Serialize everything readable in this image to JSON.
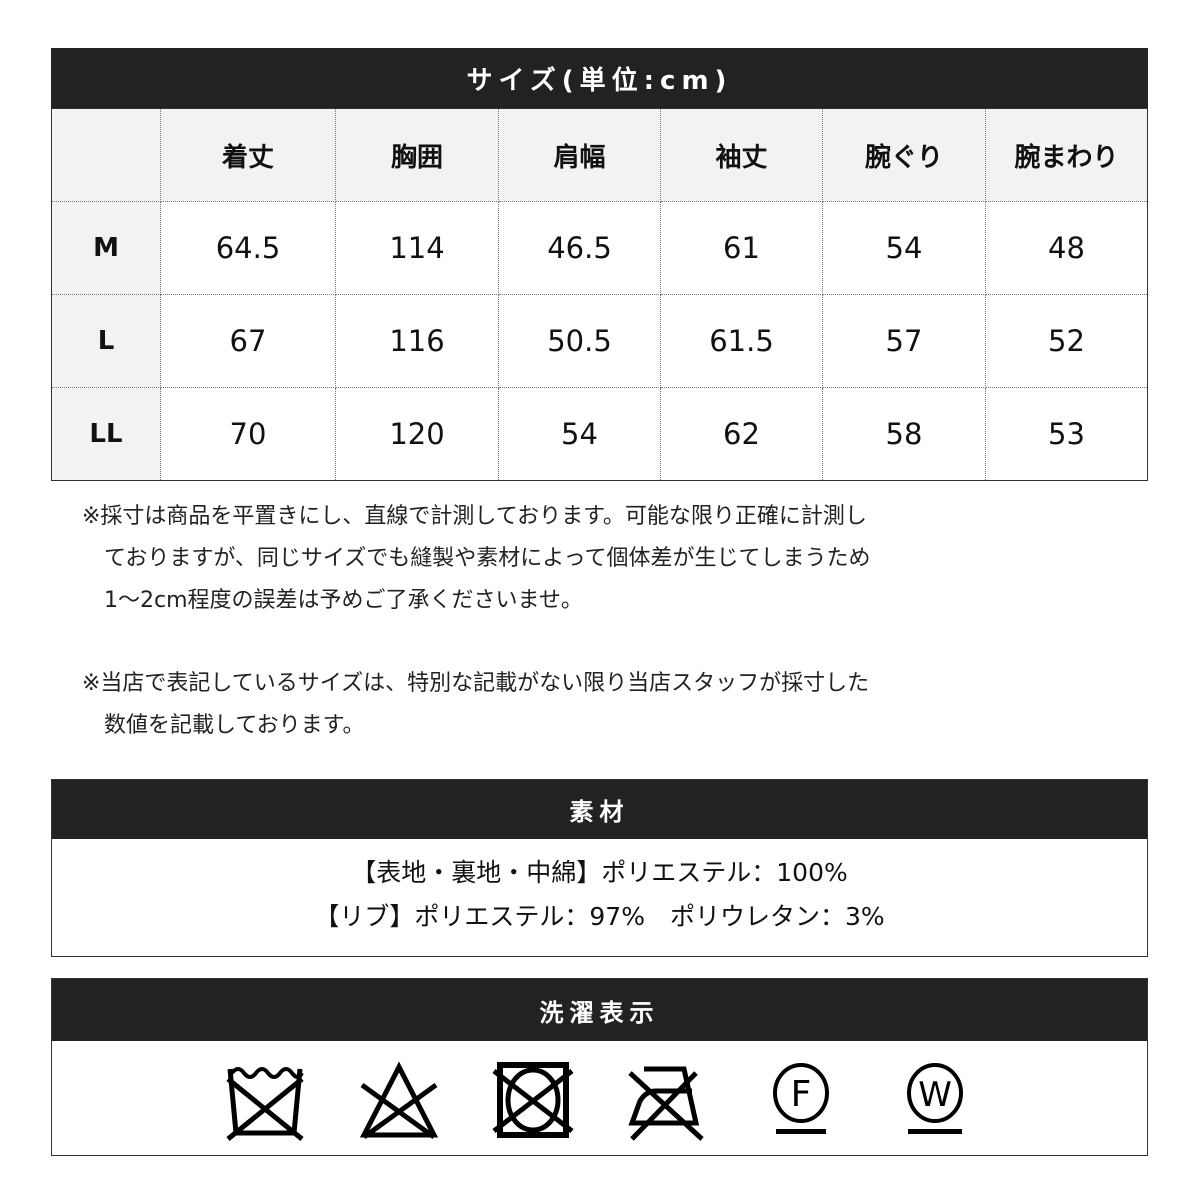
{
  "size_table": {
    "title": "サイズ(単位:cm)",
    "columns": [
      "",
      "着丈",
      "胸囲",
      "肩幅",
      "袖丈",
      "腕ぐり",
      "腕まわり"
    ],
    "rows": [
      {
        "size": "M",
        "values": [
          "64.5",
          "114",
          "46.5",
          "61",
          "54",
          "48"
        ]
      },
      {
        "size": "L",
        "values": [
          "67",
          "116",
          "50.5",
          "61.5",
          "57",
          "52"
        ]
      },
      {
        "size": "LL",
        "values": [
          "70",
          "120",
          "54",
          "62",
          "58",
          "53"
        ]
      }
    ]
  },
  "notes": [
    "※採寸は商品を平置きにし、直線で計測しております。可能な限り正確に計測し",
    "　ておりますが、同じサイズでも縫製や素材によって個体差が生じてしまうため",
    "　1～2cm程度の誤差は予めご了承くださいませ。",
    "※当店で表記しているサイズは、特別な記載がない限り当店スタッフが採寸した",
    "　数値を記載しております。"
  ],
  "material": {
    "title": "素材",
    "lines": [
      "【表地・裏地・中綿】ポリエステル：100%",
      "【リブ】ポリエステル：97%　ポリウレタン：3%"
    ]
  },
  "care": {
    "title": "洗濯表示",
    "icons": [
      "no-wash-icon",
      "no-bleach-icon",
      "no-tumble-dry-icon",
      "no-iron-icon",
      "dry-clean-F-icon",
      "wet-clean-W-icon"
    ],
    "F": "F",
    "W": "W"
  }
}
